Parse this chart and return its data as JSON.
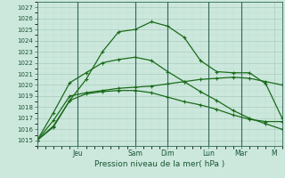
{
  "background_color": "#cce8dd",
  "grid_major_color": "#aaccbb",
  "grid_minor_color": "#bbddcc",
  "line_color": "#1a6b1a",
  "xlabel": "Pression niveau de la mer( hPa )",
  "ylim": [
    1014.5,
    1027.5
  ],
  "xlim": [
    0,
    15
  ],
  "yticks": [
    1015,
    1016,
    1017,
    1018,
    1019,
    1020,
    1021,
    1022,
    1023,
    1024,
    1025,
    1026,
    1027
  ],
  "day_labels": [
    "Jeu",
    "Sam",
    "Dim",
    "Lun",
    "Mar",
    "M"
  ],
  "day_positions": [
    2.5,
    6,
    8,
    10.5,
    12.5,
    14.5
  ],
  "vline_positions": [
    2.5,
    6,
    8,
    10.5,
    12.5
  ],
  "series1_x": [
    0,
    1,
    2,
    3,
    4,
    5,
    6,
    7,
    8,
    9,
    10,
    11,
    12,
    13,
    14,
    15
  ],
  "series1_y": [
    1015.0,
    1016.2,
    1018.6,
    1019.2,
    1019.4,
    1019.5,
    1019.5,
    1019.3,
    1018.9,
    1018.5,
    1018.2,
    1017.8,
    1017.3,
    1016.9,
    1016.7,
    1016.7
  ],
  "series2_x": [
    0,
    1,
    2,
    3,
    4,
    5,
    6,
    7,
    8,
    9,
    10,
    11,
    12,
    13,
    14,
    15
  ],
  "series2_y": [
    1015.0,
    1016.8,
    1019.0,
    1019.3,
    1019.5,
    1019.7,
    1019.8,
    1019.9,
    1020.1,
    1020.3,
    1020.5,
    1020.6,
    1020.7,
    1020.6,
    1020.3,
    1020.0
  ],
  "series3_x": [
    0,
    1,
    2,
    3,
    4,
    5,
    6,
    7,
    8,
    9,
    10,
    11,
    12,
    13,
    14,
    15
  ],
  "series3_y": [
    1015.0,
    1017.5,
    1020.2,
    1021.1,
    1022.0,
    1022.3,
    1022.5,
    1022.2,
    1021.2,
    1020.3,
    1019.4,
    1018.6,
    1017.7,
    1017.0,
    1016.5,
    1016.0
  ],
  "series4_x": [
    0,
    1,
    2,
    3,
    4,
    5,
    6,
    7,
    8,
    9,
    10,
    11,
    12,
    13,
    14,
    15
  ],
  "series4_y": [
    1015.0,
    1016.3,
    1018.6,
    1020.5,
    1023.0,
    1024.8,
    1025.0,
    1025.7,
    1025.3,
    1024.3,
    1022.2,
    1021.2,
    1021.1,
    1021.1,
    1020.1,
    1017.0
  ]
}
